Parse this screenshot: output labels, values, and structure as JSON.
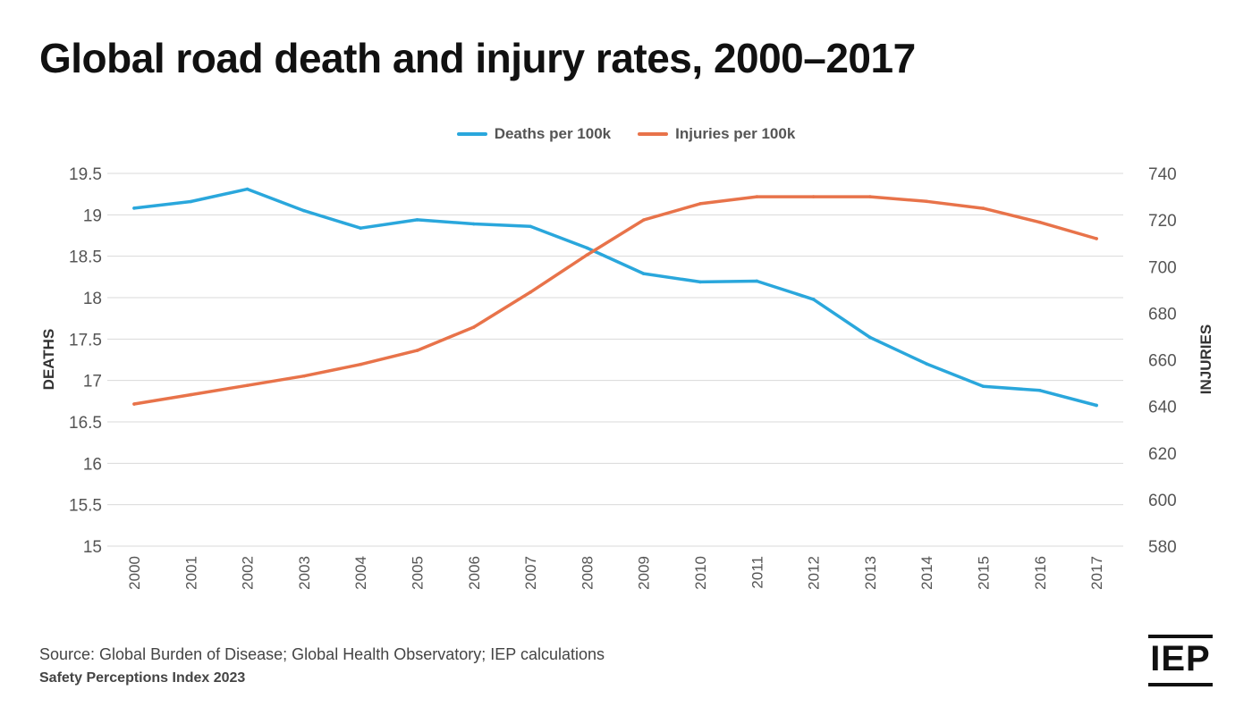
{
  "title": "Global road death and injury rates, 2000–2017",
  "legend": {
    "deaths": "Deaths per 100k",
    "injuries": "Injuries per 100k"
  },
  "source": "Source: Global Burden of Disease; Global Health Observatory; IEP calculations",
  "footer": "Safety Perceptions Index 2023",
  "logo": "IEP",
  "colors": {
    "deaths": "#2aa7dc",
    "injuries": "#e8734a",
    "grid": "#d9d9d9",
    "tick": "#555555"
  },
  "chart_data": {
    "type": "line",
    "x": [
      "2000",
      "2001",
      "2002",
      "2003",
      "2004",
      "2005",
      "2006",
      "2007",
      "2008",
      "2009",
      "2010",
      "2011",
      "2012",
      "2013",
      "2014",
      "2015",
      "2016",
      "2017"
    ],
    "series": [
      {
        "name": "Deaths per 100k",
        "axis": "left",
        "values": [
          19.08,
          19.16,
          19.31,
          19.05,
          18.84,
          18.94,
          18.89,
          18.86,
          18.6,
          18.29,
          18.19,
          18.2,
          17.98,
          17.52,
          17.2,
          16.93,
          16.88,
          16.7
        ]
      },
      {
        "name": "Injuries per 100k",
        "axis": "right",
        "values": [
          641,
          645,
          649,
          653,
          658,
          664,
          674,
          689,
          705,
          720,
          727,
          730,
          730,
          730,
          728,
          725,
          719,
          712
        ]
      }
    ],
    "ylabel_left": "DEATHS",
    "ylabel_right": "INJURIES",
    "ylim_left": [
      15,
      19.5
    ],
    "ylim_right": [
      580,
      740
    ],
    "yticks_left": [
      "15",
      "15.5",
      "16",
      "16.5",
      "17",
      "17.5",
      "18",
      "18.5",
      "19",
      "19.5"
    ],
    "yticks_right": [
      "580",
      "600",
      "620",
      "640",
      "660",
      "680",
      "700",
      "720",
      "740"
    ],
    "grid": true,
    "legend_position": "top-center"
  }
}
